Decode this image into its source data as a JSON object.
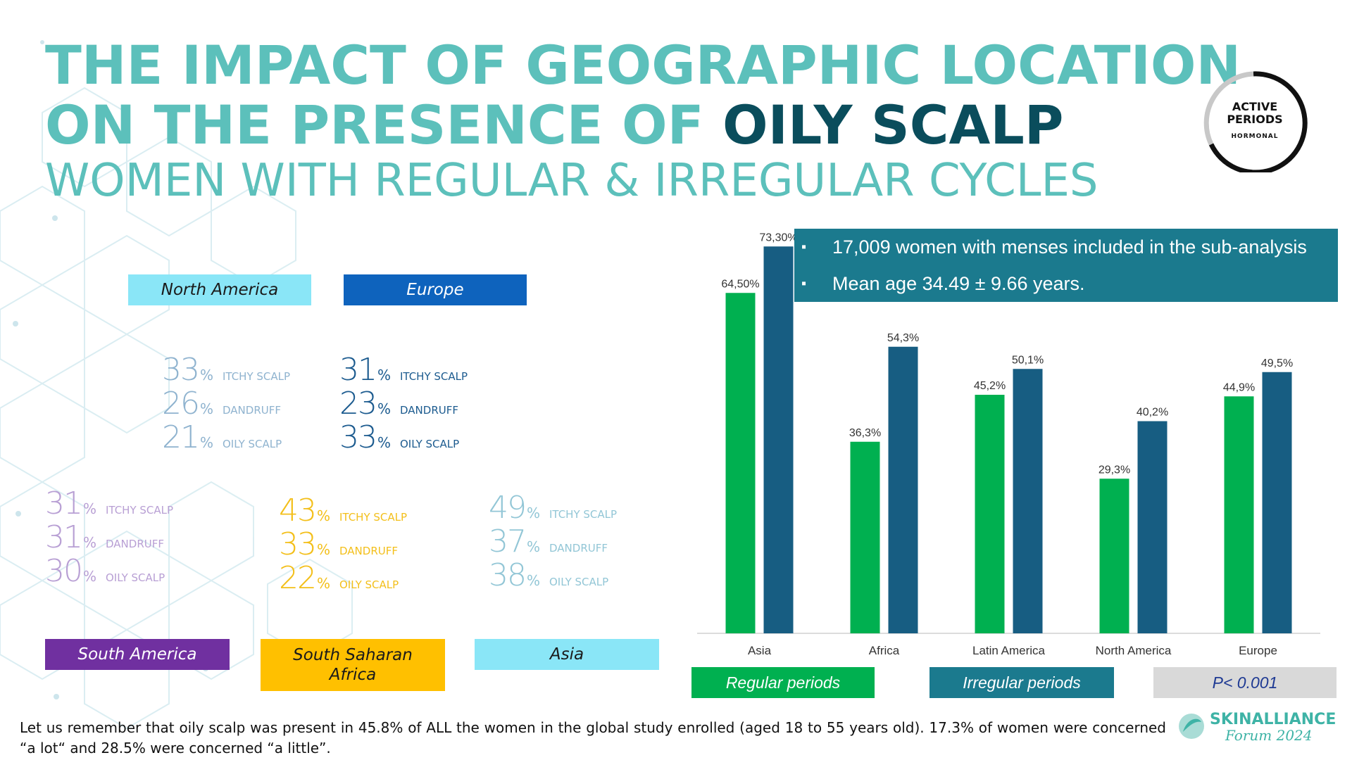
{
  "colors": {
    "title_teal": "#5cc0bb",
    "title_dark": "#0a4d5c",
    "regular": "#00b050",
    "irregular": "#175d82",
    "info_box": "#1b7a8e",
    "pvalue_box": "#d9d9d9"
  },
  "title": {
    "line1": "THE IMPACT OF GEOGRAPHIC LOCATION",
    "line2_a": "ON THE PRESENCE OF ",
    "line2_b": "OILY SCALP",
    "subtitle": "WOMEN WITH REGULAR & IRREGULAR CYCLES"
  },
  "badge": {
    "line1": "ACTIVE",
    "line2": "PERIODS",
    "line3": "HORMONAL"
  },
  "regions": [
    {
      "label": "North America",
      "bg": "#8ae6f7",
      "fg": "#1a1a1a",
      "color": "#8fb3cf",
      "stats": [
        {
          "value": "33",
          "unit": "%",
          "label": "ITCHY SCALP"
        },
        {
          "value": "26",
          "unit": "%",
          "label": "DANDRUFF"
        },
        {
          "value": "21",
          "unit": "%",
          "label": "OILY SCALP"
        }
      ]
    },
    {
      "label": "Europe",
      "bg": "#0e63bd",
      "fg": "#ffffff",
      "color": "#1c5b8f",
      "stats": [
        {
          "value": "31",
          "unit": "%",
          "label": "ITCHY SCALP"
        },
        {
          "value": "23",
          "unit": "%",
          "label": "DANDRUFF"
        },
        {
          "value": "33",
          "unit": "%",
          "label": "OILY SCALP"
        }
      ]
    },
    {
      "label": "South America",
      "bg": "#7030a0",
      "fg": "#ffffff",
      "color": "#b89fd4",
      "stats": [
        {
          "value": "31",
          "unit": "%",
          "label": "ITCHY SCALP"
        },
        {
          "value": "31",
          "unit": "%",
          "label": "DANDRUFF"
        },
        {
          "value": "30",
          "unit": "%",
          "label": "OILY SCALP"
        }
      ]
    },
    {
      "label": "South Saharan Africa",
      "bg": "#ffc000",
      "fg": "#1a1a1a",
      "color": "#f3bf1a",
      "stats": [
        {
          "value": "43",
          "unit": "%",
          "label": "ITCHY SCALP"
        },
        {
          "value": "33",
          "unit": "%",
          "label": "DANDRUFF"
        },
        {
          "value": "22",
          "unit": "%",
          "label": "OILY SCALP"
        }
      ]
    },
    {
      "label": "Asia",
      "bg": "#8ae6f7",
      "fg": "#1a1a1a",
      "color": "#92c6d6",
      "stats": [
        {
          "value": "49",
          "unit": "%",
          "label": "ITCHY SCALP"
        },
        {
          "value": "37",
          "unit": "%",
          "label": "DANDRUFF"
        },
        {
          "value": "38",
          "unit": "%",
          "label": "OILY SCALP"
        }
      ]
    }
  ],
  "info": {
    "bullet": "▪",
    "line1": "17,009 women with menses included in the sub-analysis",
    "line2": "Mean age 34.49 ± 9.66 years."
  },
  "legend": {
    "regular": "Regular periods",
    "irregular": "Irregular periods",
    "pvalue": "P< 0.001"
  },
  "chart_data": {
    "type": "bar",
    "categories": [
      "Asia",
      "Africa",
      "Latin America",
      "North America",
      "Europe"
    ],
    "series": [
      {
        "name": "Regular periods",
        "values": [
          64.5,
          36.3,
          45.2,
          29.3,
          44.9
        ],
        "labels": [
          "64,50%",
          "36,3%",
          "45,2%",
          "29,3%",
          "44,9%"
        ],
        "color": "#00b050"
      },
      {
        "name": "Irregular periods",
        "values": [
          73.3,
          54.3,
          50.1,
          40.2,
          49.5
        ],
        "labels": [
          "73,30%",
          "54,3%",
          "50,1%",
          "40,2%",
          "49,5%"
        ],
        "color": "#175d82"
      }
    ],
    "ylim": [
      0,
      80
    ],
    "title": "",
    "xlabel": "",
    "ylabel": "",
    "grid": false
  },
  "footer": {
    "text": "Let us remember that oily scalp was present in 45.8% of ALL the women in the global study enrolled (aged 18 to 55 years old). 17.3% of women were concerned “a lot“ and 28.5% were concerned “a little”."
  },
  "logo": {
    "name": "SKINALLIANCE",
    "sub": "Forum 2024"
  }
}
